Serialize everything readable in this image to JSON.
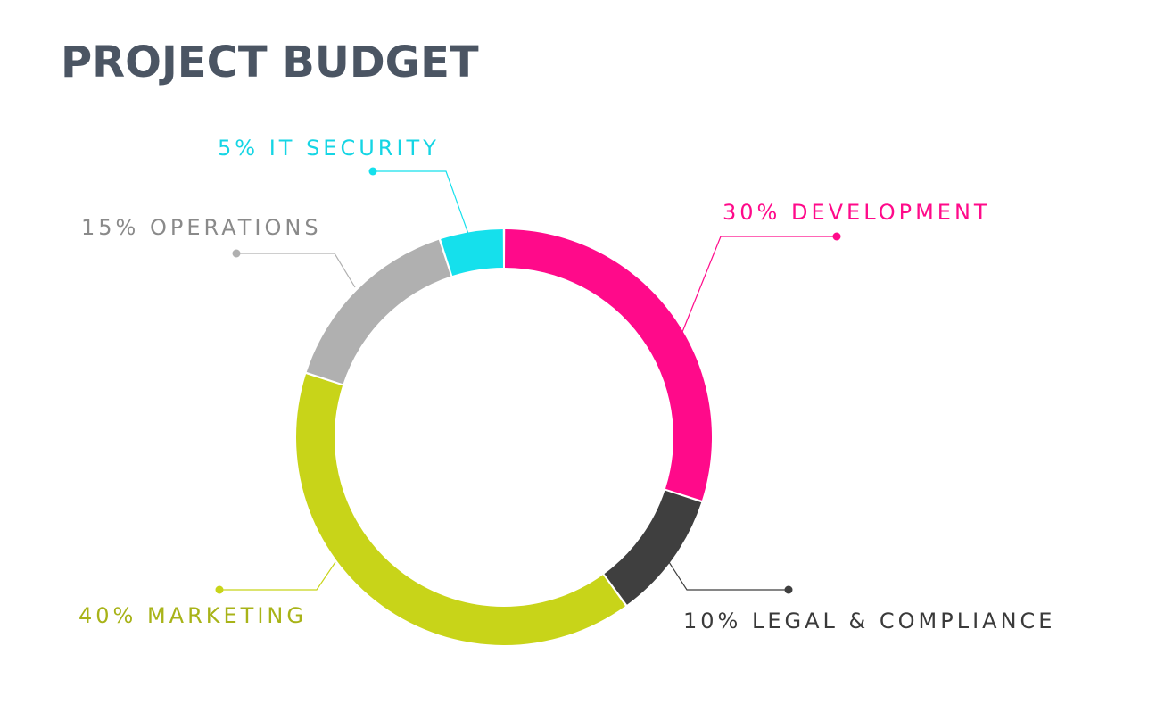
{
  "chart_data": {
    "type": "pie",
    "variant": "donut",
    "title": "PROJECT BUDGET",
    "unit": "%",
    "slices": [
      {
        "key": "development",
        "label": "DEVELOPMENT",
        "value": 30,
        "color": "#ff0a8a"
      },
      {
        "key": "legal",
        "label": "LEGAL & COMPLIANCE",
        "value": 10,
        "color": "#3f3f3f"
      },
      {
        "key": "marketing",
        "label": "MARKETING",
        "value": 40,
        "color": "#c8d419"
      },
      {
        "key": "operations",
        "label": "OPERATIONS",
        "value": 15,
        "color": "#b0b0b0"
      },
      {
        "key": "it-security",
        "label": "IT SECURITY",
        "value": 5,
        "color": "#15e0ec"
      }
    ],
    "label_texts": {
      "development": "30% DEVELOPMENT",
      "legal": "10% LEGAL & COMPLIANCE",
      "marketing": "40% MARKETING",
      "operations": "15% OPERATIONS",
      "it-security": "5% IT SECURITY"
    },
    "label_colors": {
      "development": "#ff0a8a",
      "legal": "#3a3a3a",
      "marketing": "#a8b318",
      "operations": "#8a8a8a",
      "it-security": "#15d5e4"
    }
  }
}
